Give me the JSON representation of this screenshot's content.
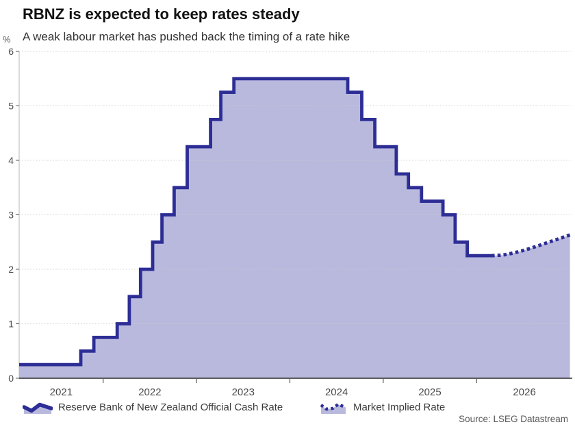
{
  "header": {
    "title": "RBNZ is expected to keep rates steady",
    "subtitle": "A weak labour market has pushed back the timing of a rate hike"
  },
  "chart_data": {
    "type": "area",
    "title": "RBNZ is expected to keep rates steady",
    "subtitle": "A weak labour market has pushed back the timing of a rate hike",
    "unit_label": "%",
    "ylabel": "%",
    "xlabel": "",
    "ylim": [
      0,
      6
    ],
    "y_ticks": [
      0,
      1,
      2,
      3,
      4,
      5,
      6
    ],
    "x_domain": [
      2021.1,
      2027.025
    ],
    "x_boundary_ticks": [
      2022,
      2023,
      2024,
      2025,
      2026
    ],
    "x_year_labels": [
      "2021",
      "2022",
      "2023",
      "2024",
      "2025",
      "2026"
    ],
    "grid": "horizontal-dotted",
    "legend_position": "bottom",
    "source": "Source: LSEG Datastream",
    "colors": {
      "line": "#2d2d96",
      "fill": "#b9b9de",
      "grid": "#cbcbcb",
      "axis_bottom": "#2b2b2b",
      "axis_left": "#b5b5b5",
      "tick": "#595959",
      "tick_label": "#4a4a4a"
    },
    "series": [
      {
        "name": "Reserve Bank of New Zealand Official Cash Rate",
        "style": "solid-step",
        "start": [
          2021.1,
          0.25
        ],
        "changes": [
          [
            2021.76,
            0.5
          ],
          [
            2021.9,
            0.75
          ],
          [
            2022.15,
            1.0
          ],
          [
            2022.28,
            1.5
          ],
          [
            2022.4,
            2.0
          ],
          [
            2022.53,
            2.5
          ],
          [
            2022.63,
            3.0
          ],
          [
            2022.76,
            3.5
          ],
          [
            2022.9,
            4.25
          ],
          [
            2023.15,
            4.75
          ],
          [
            2023.26,
            5.25
          ],
          [
            2023.4,
            5.5
          ],
          [
            2024.62,
            5.25
          ],
          [
            2024.77,
            4.75
          ],
          [
            2024.91,
            4.25
          ],
          [
            2025.14,
            3.75
          ],
          [
            2025.27,
            3.5
          ],
          [
            2025.41,
            3.25
          ],
          [
            2025.64,
            3.0
          ],
          [
            2025.77,
            2.5
          ],
          [
            2025.9,
            2.25
          ]
        ],
        "end_year": 2026.16
      },
      {
        "name": "Market Implied Rate",
        "style": "dotted",
        "points": [
          [
            2026.16,
            2.25
          ],
          [
            2026.28,
            2.26
          ],
          [
            2026.4,
            2.3
          ],
          [
            2026.52,
            2.355
          ],
          [
            2026.64,
            2.42
          ],
          [
            2026.76,
            2.49
          ],
          [
            2026.88,
            2.56
          ],
          [
            2027.0,
            2.63
          ]
        ]
      }
    ]
  }
}
